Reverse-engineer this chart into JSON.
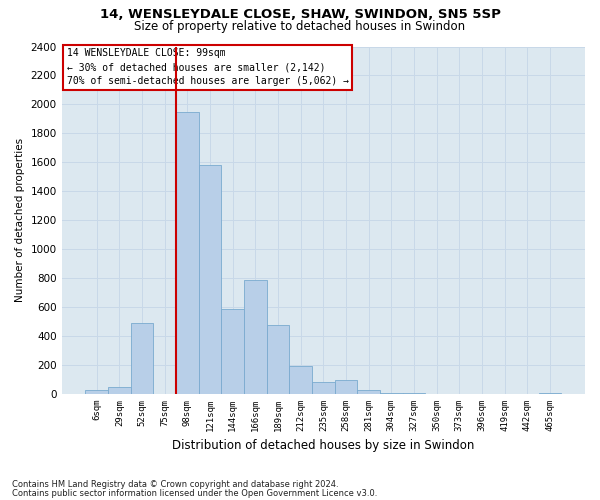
{
  "title1": "14, WENSLEYDALE CLOSE, SHAW, SWINDON, SN5 5SP",
  "title2": "Size of property relative to detached houses in Swindon",
  "xlabel": "Distribution of detached houses by size in Swindon",
  "ylabel": "Number of detached properties",
  "footnote1": "Contains HM Land Registry data © Crown copyright and database right 2024.",
  "footnote2": "Contains public sector information licensed under the Open Government Licence v3.0.",
  "categories": [
    "6sqm",
    "29sqm",
    "52sqm",
    "75sqm",
    "98sqm",
    "121sqm",
    "144sqm",
    "166sqm",
    "189sqm",
    "212sqm",
    "235sqm",
    "258sqm",
    "281sqm",
    "304sqm",
    "327sqm",
    "350sqm",
    "373sqm",
    "396sqm",
    "419sqm",
    "442sqm",
    "465sqm"
  ],
  "values": [
    30,
    50,
    490,
    0,
    1950,
    1580,
    590,
    790,
    480,
    195,
    80,
    95,
    30,
    10,
    8,
    3,
    0,
    0,
    0,
    0,
    8
  ],
  "bar_color": "#b8cfe8",
  "bar_edge_color": "#7aaacf",
  "property_bar_idx": 4,
  "annotation_text1": "14 WENSLEYDALE CLOSE: 99sqm",
  "annotation_text2": "← 30% of detached houses are smaller (2,142)",
  "annotation_text3": "70% of semi-detached houses are larger (5,062) →",
  "annotation_box_color": "#ffffff",
  "annotation_box_edge": "#cc0000",
  "vline_color": "#cc0000",
  "ylim": [
    0,
    2400
  ],
  "yticks": [
    0,
    200,
    400,
    600,
    800,
    1000,
    1200,
    1400,
    1600,
    1800,
    2000,
    2200,
    2400
  ],
  "grid_color": "#c8d8e8",
  "bg_color": "#dce8f0",
  "title1_fontsize": 9.5,
  "title2_fontsize": 8.5
}
